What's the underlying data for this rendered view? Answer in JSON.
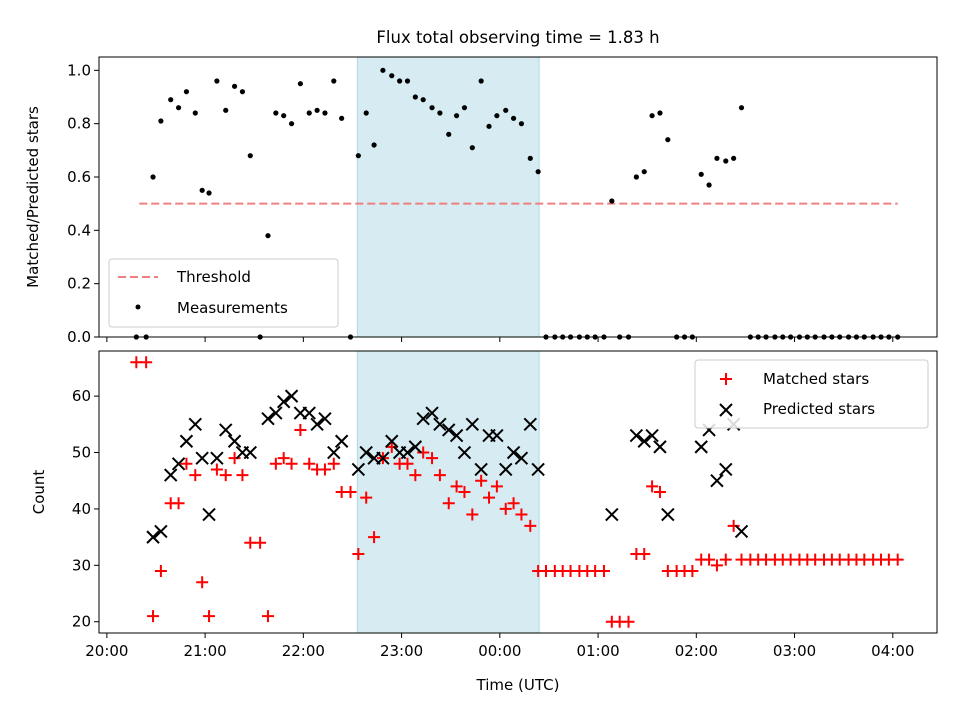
{
  "figure": {
    "title": "Flux total observing time = 1.83 h",
    "xlabel": "Time (UTC)",
    "xticks": [
      "20:00",
      "21:00",
      "22:00",
      "23:00",
      "00:00",
      "01:00",
      "02:00",
      "03:00",
      "04:00"
    ]
  },
  "colors": {
    "threshold": "#f08080",
    "measurement": "#000000",
    "matched": "#ff0000",
    "predicted": "#000000",
    "highlight": "#add8e6"
  },
  "chart_data": [
    {
      "type": "scatter",
      "x_unit": "hours after 20:00 UTC",
      "ylabel": "Matched/Predicted stars",
      "ylim": [
        0,
        1.05
      ],
      "xlim": [
        -0.08,
        8.45
      ],
      "yticks": [
        "0.0",
        "0.2",
        "0.4",
        "0.6",
        "0.8",
        "1.0"
      ],
      "ytick_values": [
        0,
        0.2,
        0.4,
        0.6,
        0.8,
        1.0
      ],
      "highlight_span": [
        2.55,
        4.4
      ],
      "legend_position": "lower-left",
      "threshold": {
        "name": "Threshold",
        "value": 0.5,
        "x_range": [
          0.33,
          8.05
        ]
      },
      "series": [
        {
          "name": "Measurements",
          "points": [
            [
              0.3,
              0
            ],
            [
              0.4,
              0
            ],
            [
              0.47,
              0.6
            ],
            [
              0.55,
              0.81
            ],
            [
              0.65,
              0.89
            ],
            [
              0.73,
              0.86
            ],
            [
              0.81,
              0.92
            ],
            [
              0.9,
              0.84
            ],
            [
              0.97,
              0.55
            ],
            [
              1.04,
              0.54
            ],
            [
              1.12,
              0.96
            ],
            [
              1.21,
              0.85
            ],
            [
              1.3,
              0.94
            ],
            [
              1.38,
              0.92
            ],
            [
              1.46,
              0.68
            ],
            [
              1.56,
              0
            ],
            [
              1.64,
              0.38
            ],
            [
              1.72,
              0.84
            ],
            [
              1.8,
              0.83
            ],
            [
              1.88,
              0.8
            ],
            [
              1.97,
              0.95
            ],
            [
              2.06,
              0.84
            ],
            [
              2.14,
              0.85
            ],
            [
              2.22,
              0.84
            ],
            [
              2.31,
              0.96
            ],
            [
              2.39,
              0.82
            ],
            [
              2.48,
              0
            ],
            [
              2.56,
              0.68
            ],
            [
              2.64,
              0.84
            ],
            [
              2.72,
              0.72
            ],
            [
              2.81,
              1.0
            ],
            [
              2.9,
              0.98
            ],
            [
              2.98,
              0.96
            ],
            [
              3.06,
              0.96
            ],
            [
              3.14,
              0.9
            ],
            [
              3.22,
              0.89
            ],
            [
              3.31,
              0.86
            ],
            [
              3.39,
              0.84
            ],
            [
              3.48,
              0.76
            ],
            [
              3.56,
              0.83
            ],
            [
              3.64,
              0.86
            ],
            [
              3.72,
              0.71
            ],
            [
              3.81,
              0.96
            ],
            [
              3.89,
              0.79
            ],
            [
              3.97,
              0.83
            ],
            [
              4.06,
              0.85
            ],
            [
              4.14,
              0.82
            ],
            [
              4.22,
              0.8
            ],
            [
              4.31,
              0.67
            ],
            [
              4.39,
              0.62
            ],
            [
              4.47,
              0
            ],
            [
              4.56,
              0
            ],
            [
              4.64,
              0
            ],
            [
              4.72,
              0
            ],
            [
              4.81,
              0
            ],
            [
              4.89,
              0
            ],
            [
              4.97,
              0
            ],
            [
              5.06,
              0
            ],
            [
              5.14,
              0.51
            ],
            [
              5.22,
              0
            ],
            [
              5.31,
              0
            ],
            [
              5.39,
              0.6
            ],
            [
              5.47,
              0.62
            ],
            [
              5.55,
              0.83
            ],
            [
              5.63,
              0.84
            ],
            [
              5.71,
              0.74
            ],
            [
              5.8,
              0
            ],
            [
              5.88,
              0
            ],
            [
              5.96,
              0
            ],
            [
              6.05,
              0.61
            ],
            [
              6.13,
              0.57
            ],
            [
              6.21,
              0.67
            ],
            [
              6.3,
              0.66
            ],
            [
              6.38,
              0.67
            ],
            [
              6.46,
              0.86
            ],
            [
              6.55,
              0
            ],
            [
              6.63,
              0
            ],
            [
              6.71,
              0
            ],
            [
              6.8,
              0
            ],
            [
              6.88,
              0
            ],
            [
              6.96,
              0
            ],
            [
              7.05,
              0
            ],
            [
              7.13,
              0
            ],
            [
              7.21,
              0
            ],
            [
              7.3,
              0
            ],
            [
              7.38,
              0
            ],
            [
              7.46,
              0
            ],
            [
              7.55,
              0
            ],
            [
              7.63,
              0
            ],
            [
              7.71,
              0
            ],
            [
              7.8,
              0
            ],
            [
              7.88,
              0
            ],
            [
              7.96,
              0
            ],
            [
              8.05,
              0
            ]
          ]
        }
      ]
    },
    {
      "type": "scatter",
      "x_unit": "hours after 20:00 UTC",
      "ylabel": "Count",
      "ylim": [
        18,
        68
      ],
      "xlim": [
        -0.08,
        8.45
      ],
      "yticks": [
        "20",
        "30",
        "40",
        "50",
        "60"
      ],
      "ytick_values": [
        20,
        30,
        40,
        50,
        60
      ],
      "highlight_span": [
        2.55,
        4.4
      ],
      "legend_position": "upper-right",
      "series": [
        {
          "name": "Matched stars",
          "marker": "plus",
          "points": [
            [
              0.3,
              66
            ],
            [
              0.4,
              66
            ],
            [
              0.47,
              21
            ],
            [
              0.55,
              29
            ],
            [
              0.65,
              41
            ],
            [
              0.73,
              41
            ],
            [
              0.81,
              48
            ],
            [
              0.9,
              46
            ],
            [
              0.97,
              27
            ],
            [
              1.04,
              21
            ],
            [
              1.12,
              47
            ],
            [
              1.21,
              46
            ],
            [
              1.3,
              49
            ],
            [
              1.38,
              46
            ],
            [
              1.46,
              34
            ],
            [
              1.56,
              34
            ],
            [
              1.64,
              21
            ],
            [
              1.72,
              48
            ],
            [
              1.8,
              49
            ],
            [
              1.88,
              48
            ],
            [
              1.97,
              54
            ],
            [
              2.06,
              48
            ],
            [
              2.14,
              47
            ],
            [
              2.22,
              47
            ],
            [
              2.31,
              48
            ],
            [
              2.39,
              43
            ],
            [
              2.48,
              43
            ],
            [
              2.56,
              32
            ],
            [
              2.64,
              42
            ],
            [
              2.72,
              35
            ],
            [
              2.81,
              49
            ],
            [
              2.9,
              51
            ],
            [
              2.98,
              48
            ],
            [
              3.06,
              48
            ],
            [
              3.14,
              46
            ],
            [
              3.22,
              50
            ],
            [
              3.31,
              49
            ],
            [
              3.39,
              46
            ],
            [
              3.48,
              41
            ],
            [
              3.56,
              44
            ],
            [
              3.64,
              43
            ],
            [
              3.72,
              39
            ],
            [
              3.81,
              45
            ],
            [
              3.89,
              42
            ],
            [
              3.97,
              44
            ],
            [
              4.06,
              40
            ],
            [
              4.14,
              41
            ],
            [
              4.22,
              39
            ],
            [
              4.31,
              37
            ],
            [
              4.39,
              29
            ],
            [
              4.47,
              29
            ],
            [
              4.56,
              29
            ],
            [
              4.64,
              29
            ],
            [
              4.72,
              29
            ],
            [
              4.81,
              29
            ],
            [
              4.89,
              29
            ],
            [
              4.97,
              29
            ],
            [
              5.06,
              29
            ],
            [
              5.14,
              20
            ],
            [
              5.22,
              20
            ],
            [
              5.31,
              20
            ],
            [
              5.39,
              32
            ],
            [
              5.47,
              32
            ],
            [
              5.55,
              44
            ],
            [
              5.63,
              43
            ],
            [
              5.71,
              29
            ],
            [
              5.8,
              29
            ],
            [
              5.88,
              29
            ],
            [
              5.96,
              29
            ],
            [
              6.05,
              31
            ],
            [
              6.13,
              31
            ],
            [
              6.21,
              30
            ],
            [
              6.3,
              31
            ],
            [
              6.38,
              37
            ],
            [
              6.46,
              31
            ],
            [
              6.55,
              31
            ],
            [
              6.63,
              31
            ],
            [
              6.71,
              31
            ],
            [
              6.8,
              31
            ],
            [
              6.88,
              31
            ],
            [
              6.96,
              31
            ],
            [
              7.05,
              31
            ],
            [
              7.13,
              31
            ],
            [
              7.21,
              31
            ],
            [
              7.3,
              31
            ],
            [
              7.38,
              31
            ],
            [
              7.46,
              31
            ],
            [
              7.55,
              31
            ],
            [
              7.63,
              31
            ],
            [
              7.71,
              31
            ],
            [
              7.8,
              31
            ],
            [
              7.88,
              31
            ],
            [
              7.96,
              31
            ],
            [
              8.05,
              31
            ]
          ]
        },
        {
          "name": "Predicted stars",
          "marker": "x",
          "points": [
            [
              0.47,
              35
            ],
            [
              0.55,
              36
            ],
            [
              0.65,
              46
            ],
            [
              0.73,
              48
            ],
            [
              0.81,
              52
            ],
            [
              0.9,
              55
            ],
            [
              0.97,
              49
            ],
            [
              1.04,
              39
            ],
            [
              1.12,
              49
            ],
            [
              1.21,
              54
            ],
            [
              1.3,
              52
            ],
            [
              1.38,
              50
            ],
            [
              1.46,
              50
            ],
            [
              1.64,
              56
            ],
            [
              1.72,
              57
            ],
            [
              1.8,
              59
            ],
            [
              1.88,
              60
            ],
            [
              1.97,
              57
            ],
            [
              2.06,
              57
            ],
            [
              2.14,
              55
            ],
            [
              2.22,
              56
            ],
            [
              2.31,
              50
            ],
            [
              2.39,
              52
            ],
            [
              2.56,
              47
            ],
            [
              2.64,
              50
            ],
            [
              2.72,
              49
            ],
            [
              2.81,
              49
            ],
            [
              2.9,
              52
            ],
            [
              2.98,
              50
            ],
            [
              3.06,
              50
            ],
            [
              3.14,
              51
            ],
            [
              3.22,
              56
            ],
            [
              3.31,
              57
            ],
            [
              3.39,
              55
            ],
            [
              3.48,
              54
            ],
            [
              3.56,
              53
            ],
            [
              3.64,
              50
            ],
            [
              3.72,
              55
            ],
            [
              3.81,
              47
            ],
            [
              3.89,
              53
            ],
            [
              3.97,
              53
            ],
            [
              4.06,
              47
            ],
            [
              4.14,
              50
            ],
            [
              4.22,
              49
            ],
            [
              4.31,
              55
            ],
            [
              4.39,
              47
            ],
            [
              5.14,
              39
            ],
            [
              5.39,
              53
            ],
            [
              5.47,
              52
            ],
            [
              5.55,
              53
            ],
            [
              5.63,
              51
            ],
            [
              5.71,
              39
            ],
            [
              6.05,
              51
            ],
            [
              6.13,
              54
            ],
            [
              6.21,
              45
            ],
            [
              6.3,
              47
            ],
            [
              6.38,
              55
            ],
            [
              6.46,
              36
            ]
          ]
        }
      ]
    }
  ]
}
